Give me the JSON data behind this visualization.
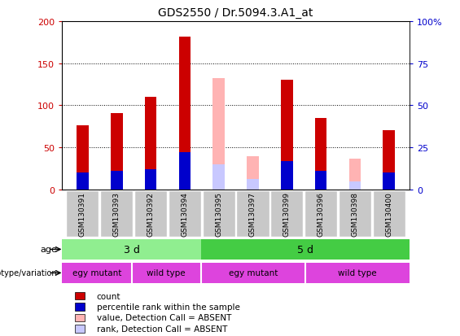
{
  "title": "GDS2550 / Dr.5094.3.A1_at",
  "samples": [
    "GSM130391",
    "GSM130393",
    "GSM130392",
    "GSM130394",
    "GSM130395",
    "GSM130397",
    "GSM130399",
    "GSM130396",
    "GSM130398",
    "GSM130400"
  ],
  "count_values": [
    76,
    91,
    110,
    182,
    0,
    0,
    130,
    85,
    0,
    70
  ],
  "percentile_values": [
    20,
    22,
    24,
    44,
    0,
    0,
    34,
    22,
    0,
    20
  ],
  "absent_value": [
    0,
    0,
    0,
    0,
    132,
    40,
    0,
    0,
    37,
    0
  ],
  "absent_rank": [
    0,
    0,
    0,
    0,
    30,
    12,
    0,
    0,
    10,
    0
  ],
  "absent_flags": [
    false,
    false,
    false,
    false,
    true,
    true,
    false,
    false,
    true,
    false
  ],
  "ylim": [
    0,
    200
  ],
  "y2lim": [
    0,
    100
  ],
  "yticks": [
    0,
    50,
    100,
    150,
    200
  ],
  "y2ticks": [
    0,
    25,
    50,
    75,
    100
  ],
  "y2labels": [
    "0",
    "25",
    "50",
    "75",
    "100%"
  ],
  "color_count": "#cc0000",
  "color_percentile": "#0000cc",
  "color_absent_value": "#ffb3b3",
  "color_absent_rank": "#c8c8ff",
  "age_light_green": "#90ee90",
  "age_dark_green": "#44cc44",
  "geno_color": "#dd44dd",
  "bar_width": 0.35,
  "xtick_bg": "#c8c8c8"
}
